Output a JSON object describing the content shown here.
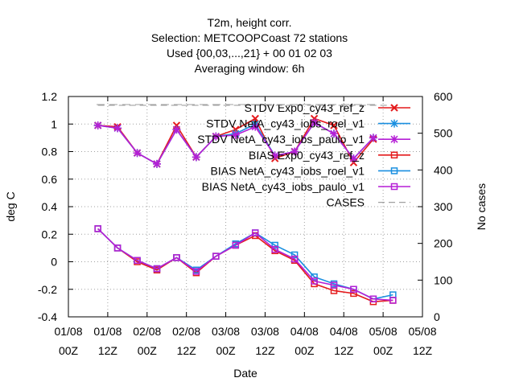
{
  "chart_data": {
    "type": "line",
    "title_lines": [
      "T2m, height corr.",
      "Selection: METCOOPCoast     72 stations",
      "Used {00,03,...,21} + 00 01 02 03",
      "Averaging window:  6h"
    ],
    "xlabel": "Date",
    "ylabel": "deg C",
    "y2label": "No cases",
    "x_ticks": [
      {
        "top": "01/08",
        "bottom": "00Z"
      },
      {
        "top": "01/08",
        "bottom": "12Z"
      },
      {
        "top": "02/08",
        "bottom": "00Z"
      },
      {
        "top": "02/08",
        "bottom": "12Z"
      },
      {
        "top": "03/08",
        "bottom": "00Z"
      },
      {
        "top": "03/08",
        "bottom": "12Z"
      },
      {
        "top": "04/08",
        "bottom": "00Z"
      },
      {
        "top": "04/08",
        "bottom": "12Z"
      },
      {
        "top": "05/08",
        "bottom": "00Z"
      },
      {
        "top": "05/08",
        "bottom": "12Z"
      }
    ],
    "xlim_hours": [
      0,
      108
    ],
    "ylim": [
      -0.4,
      1.2
    ],
    "y_ticks": [
      "-0.4",
      "-0.2",
      "0",
      "0.2",
      "0.4",
      "0.6",
      "0.8",
      "1",
      "1.2"
    ],
    "y2lim": [
      0,
      600
    ],
    "y2_ticks": [
      "0",
      "100",
      "200",
      "300",
      "400",
      "500",
      "600"
    ],
    "grid": true,
    "legend_position": "top-right",
    "x_hours": [
      9,
      15,
      21,
      27,
      33,
      39,
      45,
      51,
      57,
      63,
      69,
      75,
      81,
      87,
      93,
      99
    ],
    "series": [
      {
        "name": "STDV Exp0_cy43_ref_z",
        "axis": "left",
        "color": "#e41a1c",
        "marker": "x",
        "values": [
          0.99,
          0.98,
          0.79,
          0.71,
          0.99,
          0.76,
          0.91,
          0.96,
          1.04,
          0.75,
          0.8,
          1.04,
          0.99,
          0.72,
          0.89,
          null
        ]
      },
      {
        "name": "STDV NetA_cy43_iobs_roel_v1",
        "axis": "left",
        "color": "#1a8fe0",
        "marker": "star",
        "values": [
          0.99,
          0.97,
          0.79,
          0.71,
          0.96,
          0.76,
          0.91,
          0.93,
          1.0,
          0.77,
          0.8,
          1.01,
          0.93,
          0.75,
          0.9,
          null
        ]
      },
      {
        "name": "STDV NetA_cy43_iobs_paulo_v1",
        "axis": "left",
        "color": "#b51fd6",
        "marker": "star",
        "values": [
          0.99,
          0.97,
          0.79,
          0.71,
          0.96,
          0.76,
          0.91,
          0.92,
          0.98,
          0.77,
          0.8,
          1.01,
          0.93,
          0.75,
          0.9,
          null
        ]
      },
      {
        "name": "BIAS Exp0_cy43_ref_z",
        "axis": "left",
        "color": "#e41a1c",
        "marker": "square",
        "values": [
          0.24,
          0.1,
          0.0,
          -0.06,
          0.03,
          -0.08,
          0.04,
          0.12,
          0.19,
          0.08,
          0.01,
          -0.16,
          -0.21,
          -0.23,
          -0.29,
          -0.28
        ]
      },
      {
        "name": "BIAS NetA_cy43_iobs_roel_v1",
        "axis": "left",
        "color": "#1a8fe0",
        "marker": "square",
        "values": [
          0.24,
          0.1,
          0.01,
          -0.05,
          0.03,
          -0.06,
          0.04,
          0.13,
          0.21,
          0.12,
          0.05,
          -0.11,
          -0.16,
          -0.2,
          -0.27,
          -0.24
        ]
      },
      {
        "name": "BIAS NetA_cy43_iobs_paulo_v1",
        "axis": "left",
        "color": "#b51fd6",
        "marker": "square",
        "values": [
          0.24,
          0.1,
          0.01,
          -0.05,
          0.03,
          -0.07,
          0.04,
          0.12,
          0.21,
          0.09,
          0.02,
          -0.14,
          -0.17,
          -0.2,
          -0.27,
          -0.28
        ]
      },
      {
        "name": "CASES",
        "axis": "right",
        "color": "#a0a0a0",
        "marker": "none",
        "dash": true,
        "values": [
          576,
          576,
          576,
          576,
          576,
          576,
          576,
          576,
          576,
          576,
          576,
          576,
          576,
          576,
          576,
          576
        ]
      }
    ]
  }
}
